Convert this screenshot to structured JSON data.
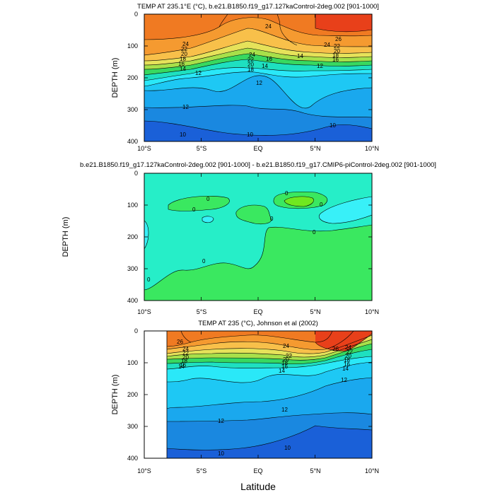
{
  "chart_data": [
    {
      "type": "contour",
      "title": "TEMP AT 235.1°E (°C), b.e21.B1850.f19_g17.127kaControl-2deg.002 [901-1000]",
      "ylabel": "DEPTH (m)",
      "xticks": [
        "10°S",
        "5°S",
        "EQ",
        "5°N",
        "10°N"
      ],
      "x": [
        -10,
        -5,
        0,
        5,
        10
      ],
      "xlim": [
        -10,
        10
      ],
      "ylim": [
        400,
        0
      ],
      "yticks": [
        0,
        100,
        200,
        300,
        400
      ],
      "contour_labels": [
        "24",
        "24",
        "22",
        "20",
        "18",
        "16",
        "14",
        "12",
        "24",
        "22",
        "20",
        "18",
        "16",
        "14",
        "12",
        "26",
        "24",
        "22",
        "20",
        "18",
        "16",
        "14",
        "12",
        "10",
        "10",
        "10",
        "12"
      ],
      "isotherm_depths": [
        {
          "level": 26,
          "depth": [
            null,
            null,
            null,
            null,
            60
          ]
        },
        {
          "level": 24,
          "depth": [
            90,
            92,
            85,
            75,
            80
          ]
        },
        {
          "level": 22,
          "depth": [
            100,
            100,
            95,
            82,
            88
          ]
        },
        {
          "level": 20,
          "depth": [
            110,
            105,
            100,
            90,
            95
          ]
        },
        {
          "level": 18,
          "depth": [
            118,
            110,
            108,
            95,
            100
          ]
        },
        {
          "level": 16,
          "depth": [
            125,
            115,
            115,
            100,
            105
          ]
        },
        {
          "level": 14,
          "depth": [
            135,
            120,
            130,
            110,
            110
          ]
        },
        {
          "level": 12,
          "depth": [
            190,
            160,
            200,
            150,
            130
          ]
        },
        {
          "level": 10,
          "depth": [
            340,
            385,
            390,
            360,
            355
          ]
        }
      ]
    },
    {
      "type": "contour",
      "title": "b.e21.B1850.f19_g17.127kaControl-2deg.002 [901-1000] - b.e21.B1850.f19_g17.CMIP6-piControl-2deg.002 [901-1000]",
      "ylabel": "DEPTH (m)",
      "xticks": [
        "10°S",
        "5°S",
        "EQ",
        "5°N",
        "10°N"
      ],
      "contour_labels": [
        "0",
        "0",
        "0",
        "0",
        "0",
        "0",
        "0",
        "0"
      ],
      "levels": [
        0
      ]
    },
    {
      "type": "contour",
      "title": "TEMP AT 235 (°C), Johnson et al (2002)",
      "ylabel": "DEPTH (m)",
      "xlabel": "Latitude",
      "xticks": [
        "10°S",
        "5°S",
        "EQ",
        "5°N",
        "10°N"
      ],
      "contour_labels": [
        "26",
        "24",
        "22",
        "20",
        "18",
        "16",
        "14",
        "24",
        "22",
        "20",
        "18",
        "16",
        "14",
        "26",
        "24",
        "22",
        "20",
        "18",
        "16",
        "14",
        "12",
        "12",
        "12",
        "10",
        "10"
      ]
    }
  ],
  "colors": {
    "t28": "#e8401a",
    "t26": "#f07a22",
    "t24": "#f59a30",
    "t22": "#f8c04a",
    "t20": "#e6e25a",
    "t18": "#a8e04a",
    "t16": "#38d860",
    "t14": "#1ee0c0",
    "t13": "#2ae8f8",
    "t12": "#1ec8f4",
    "t11": "#1aa8ee",
    "t10": "#1a88e0",
    "t9": "#1a60d8",
    "diffPos": "#3ae860",
    "diffMid": "#26eec8",
    "diffNeg": "#38f0f8",
    "diffStrong": "#70e820"
  }
}
